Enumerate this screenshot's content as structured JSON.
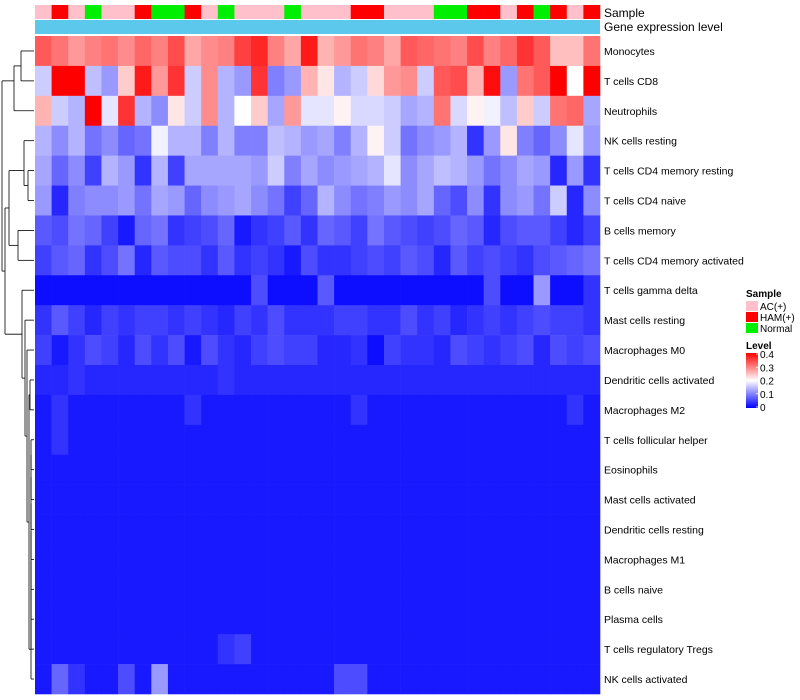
{
  "chart_data": {
    "type": "heatmap",
    "title": "",
    "rows": [
      "Monocytes",
      "T cells CD8",
      "Neutrophils",
      "NK cells resting",
      "T cells CD4 memory resting",
      "T cells CD4 naive",
      "B cells memory",
      "T cells CD4 memory activated",
      "T cells gamma delta",
      "Mast cells resting",
      "Macrophages M0",
      "Dendritic cells activated",
      "Macrophages M2",
      "T cells follicular helper",
      "Eosinophils",
      "Mast cells activated",
      "Dendritic cells resting",
      "Macrophages M1",
      "B cells naive",
      "Plasma cells",
      "T cells regulatory  Tregs",
      "NK cells activated"
    ],
    "n_columns": 34,
    "annotation_tracks": [
      {
        "name": "Sample",
        "values": [
          "AC(+)",
          "HAM(+)",
          "AC(+)",
          "Normal",
          "AC(+)",
          "AC(+)",
          "HAM(+)",
          "Normal",
          "Normal",
          "HAM(+)",
          "AC(+)",
          "Normal",
          "AC(+)",
          "AC(+)",
          "AC(+)",
          "Normal",
          "AC(+)",
          "AC(+)",
          "AC(+)",
          "HAM(+)",
          "HAM(+)",
          "AC(+)",
          "AC(+)",
          "AC(+)",
          "Normal",
          "Normal",
          "HAM(+)",
          "HAM(+)",
          "AC(+)",
          "HAM(+)",
          "Normal",
          "HAM(+)",
          "AC(+)",
          "HAM(+)"
        ]
      },
      {
        "name": "Gene expression level",
        "values": "uniform"
      }
    ],
    "sample_colors": {
      "AC(+)": "#ffc0cb",
      "HAM(+)": "#ff0000",
      "Normal": "#00ee00"
    },
    "gene_expression_color": "#5bc8ec",
    "color_scale": {
      "low": "#0000ff",
      "mid": "#ffffff",
      "high": "#ff0000",
      "min": 0,
      "mid_value": 0.2,
      "max": 0.4
    },
    "legend": {
      "sample_title": "Sample",
      "sample_items": [
        "AC(+)",
        "HAM(+)",
        "Normal"
      ],
      "level_title": "Level",
      "level_ticks": [
        "0.4",
        "0.3",
        "0.2",
        "0.1",
        "0"
      ]
    },
    "values": [
      [
        0.33,
        0.31,
        0.28,
        0.3,
        0.31,
        0.29,
        0.32,
        0.3,
        0.34,
        0.27,
        0.29,
        0.3,
        0.35,
        0.37,
        0.3,
        0.27,
        0.38,
        0.26,
        0.28,
        0.31,
        0.3,
        0.27,
        0.33,
        0.32,
        0.31,
        0.3,
        0.34,
        0.3,
        0.32,
        0.36,
        0.33,
        0.25,
        0.25,
        0.31
      ],
      [
        0.16,
        0.4,
        0.4,
        0.15,
        0.12,
        0.24,
        0.38,
        0.28,
        0.36,
        0.16,
        0.29,
        0.14,
        0.12,
        0.36,
        0.1,
        0.12,
        0.26,
        0.22,
        0.14,
        0.16,
        0.23,
        0.28,
        0.29,
        0.16,
        0.33,
        0.34,
        0.26,
        0.39,
        0.12,
        0.31,
        0.33,
        0.4,
        0.2,
        0.4
      ],
      [
        0.26,
        0.16,
        0.14,
        0.4,
        0.18,
        0.36,
        0.14,
        0.11,
        0.22,
        0.16,
        0.29,
        0.14,
        0.2,
        0.24,
        0.13,
        0.28,
        0.18,
        0.18,
        0.21,
        0.17,
        0.17,
        0.16,
        0.13,
        0.14,
        0.31,
        0.17,
        0.21,
        0.19,
        0.15,
        0.24,
        0.16,
        0.31,
        0.32,
        0.13
      ],
      [
        0.14,
        0.11,
        0.14,
        0.09,
        0.11,
        0.08,
        0.09,
        0.19,
        0.14,
        0.14,
        0.1,
        0.14,
        0.1,
        0.1,
        0.15,
        0.14,
        0.12,
        0.13,
        0.1,
        0.14,
        0.21,
        0.16,
        0.09,
        0.11,
        0.12,
        0.14,
        0.04,
        0.12,
        0.22,
        0.1,
        0.08,
        0.11,
        0.18,
        0.12
      ],
      [
        0.13,
        0.08,
        0.11,
        0.05,
        0.14,
        0.12,
        0.04,
        0.14,
        0.05,
        0.13,
        0.13,
        0.13,
        0.13,
        0.12,
        0.16,
        0.1,
        0.13,
        0.11,
        0.12,
        0.13,
        0.14,
        0.18,
        0.11,
        0.13,
        0.15,
        0.14,
        0.12,
        0.09,
        0.11,
        0.13,
        0.12,
        0.03,
        0.12,
        0.04
      ],
      [
        0.12,
        0.03,
        0.1,
        0.11,
        0.11,
        0.12,
        0.09,
        0.13,
        0.12,
        0.08,
        0.11,
        0.12,
        0.13,
        0.11,
        0.09,
        0.05,
        0.08,
        0.14,
        0.11,
        0.09,
        0.1,
        0.12,
        0.11,
        0.13,
        0.08,
        0.06,
        0.11,
        0.04,
        0.11,
        0.12,
        0.09,
        0.16,
        0.03,
        0.11
      ],
      [
        0.07,
        0.06,
        0.09,
        0.08,
        0.05,
        0.02,
        0.08,
        0.09,
        0.04,
        0.05,
        0.06,
        0.08,
        0.02,
        0.04,
        0.05,
        0.07,
        0.04,
        0.08,
        0.07,
        0.05,
        0.09,
        0.07,
        0.06,
        0.05,
        0.06,
        0.08,
        0.07,
        0.03,
        0.06,
        0.07,
        0.07,
        0.05,
        0.03,
        0.05
      ],
      [
        0.05,
        0.07,
        0.08,
        0.04,
        0.06,
        0.09,
        0.03,
        0.07,
        0.06,
        0.06,
        0.04,
        0.07,
        0.04,
        0.05,
        0.04,
        0.02,
        0.06,
        0.04,
        0.04,
        0.05,
        0.06,
        0.05,
        0.07,
        0.06,
        0.03,
        0.07,
        0.05,
        0.06,
        0.05,
        0.04,
        0.06,
        0.07,
        0.08,
        0.09
      ],
      [
        0.01,
        0.01,
        0.01,
        0.01,
        0.01,
        0.01,
        0.01,
        0.01,
        0.01,
        0.01,
        0.01,
        0.01,
        0.01,
        0.06,
        0.01,
        0.01,
        0.01,
        0.07,
        0.01,
        0.01,
        0.01,
        0.01,
        0.01,
        0.01,
        0.01,
        0.01,
        0.01,
        0.06,
        0.01,
        0.01,
        0.12,
        0.01,
        0.01,
        0.04
      ],
      [
        0.04,
        0.07,
        0.05,
        0.03,
        0.05,
        0.04,
        0.05,
        0.05,
        0.04,
        0.05,
        0.04,
        0.03,
        0.05,
        0.04,
        0.06,
        0.04,
        0.04,
        0.04,
        0.05,
        0.05,
        0.04,
        0.04,
        0.06,
        0.04,
        0.05,
        0.03,
        0.04,
        0.05,
        0.04,
        0.05,
        0.06,
        0.05,
        0.05,
        0.04
      ],
      [
        0.05,
        0.02,
        0.04,
        0.06,
        0.05,
        0.03,
        0.06,
        0.04,
        0.06,
        0.02,
        0.06,
        0.04,
        0.03,
        0.05,
        0.06,
        0.05,
        0.05,
        0.03,
        0.03,
        0.04,
        0.01,
        0.05,
        0.04,
        0.04,
        0.03,
        0.06,
        0.05,
        0.04,
        0.05,
        0.06,
        0.03,
        0.06,
        0.05,
        0.06
      ],
      [
        0.03,
        0.03,
        0.04,
        0.03,
        0.03,
        0.03,
        0.03,
        0.03,
        0.03,
        0.03,
        0.03,
        0.04,
        0.03,
        0.03,
        0.03,
        0.03,
        0.03,
        0.03,
        0.03,
        0.03,
        0.03,
        0.03,
        0.03,
        0.03,
        0.03,
        0.03,
        0.03,
        0.03,
        0.03,
        0.03,
        0.03,
        0.03,
        0.03,
        0.03
      ],
      [
        0.02,
        0.04,
        0.02,
        0.02,
        0.02,
        0.02,
        0.02,
        0.02,
        0.02,
        0.04,
        0.02,
        0.02,
        0.02,
        0.02,
        0.02,
        0.02,
        0.02,
        0.02,
        0.02,
        0.04,
        0.02,
        0.02,
        0.02,
        0.02,
        0.02,
        0.02,
        0.02,
        0.02,
        0.02,
        0.02,
        0.02,
        0.02,
        0.04,
        0.02
      ],
      [
        0.02,
        0.04,
        0.02,
        0.02,
        0.02,
        0.02,
        0.02,
        0.02,
        0.02,
        0.02,
        0.02,
        0.02,
        0.02,
        0.02,
        0.02,
        0.02,
        0.02,
        0.02,
        0.02,
        0.02,
        0.02,
        0.02,
        0.02,
        0.02,
        0.02,
        0.02,
        0.02,
        0.02,
        0.02,
        0.02,
        0.02,
        0.02,
        0.02,
        0.02
      ],
      [
        0.02,
        0.02,
        0.02,
        0.02,
        0.02,
        0.02,
        0.02,
        0.02,
        0.02,
        0.02,
        0.02,
        0.02,
        0.02,
        0.02,
        0.02,
        0.02,
        0.02,
        0.02,
        0.02,
        0.02,
        0.02,
        0.02,
        0.02,
        0.02,
        0.02,
        0.02,
        0.02,
        0.02,
        0.02,
        0.02,
        0.02,
        0.02,
        0.02,
        0.02
      ],
      [
        0.02,
        0.02,
        0.02,
        0.02,
        0.02,
        0.02,
        0.02,
        0.02,
        0.02,
        0.02,
        0.02,
        0.02,
        0.02,
        0.02,
        0.02,
        0.02,
        0.02,
        0.02,
        0.02,
        0.02,
        0.02,
        0.02,
        0.02,
        0.02,
        0.02,
        0.02,
        0.02,
        0.02,
        0.02,
        0.02,
        0.02,
        0.02,
        0.02,
        0.02
      ],
      [
        0.02,
        0.02,
        0.02,
        0.02,
        0.02,
        0.02,
        0.02,
        0.02,
        0.02,
        0.02,
        0.02,
        0.02,
        0.02,
        0.02,
        0.02,
        0.02,
        0.02,
        0.02,
        0.02,
        0.02,
        0.02,
        0.02,
        0.02,
        0.02,
        0.02,
        0.02,
        0.02,
        0.02,
        0.02,
        0.02,
        0.02,
        0.02,
        0.02,
        0.02
      ],
      [
        0.02,
        0.02,
        0.02,
        0.02,
        0.02,
        0.02,
        0.02,
        0.02,
        0.02,
        0.02,
        0.02,
        0.02,
        0.02,
        0.02,
        0.02,
        0.02,
        0.02,
        0.02,
        0.02,
        0.02,
        0.02,
        0.02,
        0.02,
        0.02,
        0.02,
        0.02,
        0.02,
        0.02,
        0.02,
        0.02,
        0.02,
        0.02,
        0.02,
        0.02
      ],
      [
        0.02,
        0.02,
        0.02,
        0.02,
        0.02,
        0.02,
        0.02,
        0.02,
        0.02,
        0.02,
        0.02,
        0.02,
        0.02,
        0.02,
        0.02,
        0.02,
        0.02,
        0.02,
        0.02,
        0.02,
        0.02,
        0.02,
        0.02,
        0.02,
        0.02,
        0.02,
        0.02,
        0.02,
        0.02,
        0.02,
        0.02,
        0.02,
        0.02,
        0.02
      ],
      [
        0.02,
        0.02,
        0.02,
        0.02,
        0.02,
        0.02,
        0.02,
        0.02,
        0.02,
        0.02,
        0.02,
        0.02,
        0.02,
        0.02,
        0.02,
        0.02,
        0.02,
        0.02,
        0.02,
        0.02,
        0.02,
        0.02,
        0.02,
        0.02,
        0.02,
        0.02,
        0.02,
        0.02,
        0.02,
        0.02,
        0.02,
        0.02,
        0.02,
        0.02
      ],
      [
        0.02,
        0.02,
        0.02,
        0.02,
        0.02,
        0.02,
        0.02,
        0.02,
        0.02,
        0.02,
        0.02,
        0.04,
        0.05,
        0.02,
        0.02,
        0.02,
        0.02,
        0.02,
        0.02,
        0.02,
        0.02,
        0.02,
        0.02,
        0.02,
        0.02,
        0.02,
        0.02,
        0.02,
        0.02,
        0.02,
        0.02,
        0.02,
        0.02,
        0.02
      ],
      [
        0.02,
        0.08,
        0.04,
        0.02,
        0.02,
        0.06,
        0.02,
        0.12,
        0.02,
        0.02,
        0.02,
        0.02,
        0.02,
        0.02,
        0.02,
        0.02,
        0.02,
        0.02,
        0.06,
        0.06,
        0.02,
        0.02,
        0.02,
        0.02,
        0.02,
        0.02,
        0.02,
        0.02,
        0.02,
        0.02,
        0.02,
        0.02,
        0.02,
        0.02
      ]
    ]
  }
}
